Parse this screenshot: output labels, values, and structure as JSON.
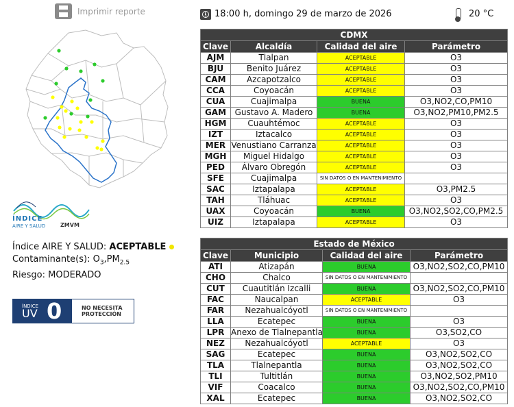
{
  "print": {
    "label": "Imprimir reporte",
    "icon": "printer-icon"
  },
  "header": {
    "datetime": "18:00 h, domingo 29 de marzo de 2026",
    "temperature": "20 °C"
  },
  "logo": {
    "line1": "ÍNDICE",
    "line2": "AIRE Y SALUD",
    "brand": "ZMVM"
  },
  "summary": {
    "index_label": "Índice AIRE Y SALUD: ",
    "index_value": "ACEPTABLE",
    "pollutant_label": "Contaminante(s): ",
    "pollutant_value": "O",
    "pollutant_sub1": "3",
    "pollutant_mid": ",PM",
    "pollutant_sub2": "2.5",
    "risk_label": "Riesgo: ",
    "risk_value": "MODERADO"
  },
  "uv": {
    "label_small": "ÍNDICE",
    "label_big": "UV",
    "value": "0",
    "note_line1": "NO NECESITA",
    "note_line2": "PROTECCIÓN"
  },
  "colors": {
    "aceptable": "#ffff00",
    "buena": "#2ccc2c",
    "header_bg": "#3f3f3f",
    "uv_blue": "#1e3f73"
  },
  "cdmx": {
    "title": "CDMX",
    "columns": [
      "Clave",
      "Alcaldía",
      "Calidad del aire",
      "Parámetro"
    ],
    "rows": [
      {
        "clave": "AJM",
        "name": "Tlalpan",
        "quality": "ACEPTABLE",
        "param": "O3"
      },
      {
        "clave": "BJU",
        "name": "Benito Juárez",
        "quality": "ACEPTABLE",
        "param": "O3"
      },
      {
        "clave": "CAM",
        "name": "Azcapotzalco",
        "quality": "ACEPTABLE",
        "param": "O3"
      },
      {
        "clave": "CCA",
        "name": "Coyoacán",
        "quality": "ACEPTABLE",
        "param": "O3"
      },
      {
        "clave": "CUA",
        "name": "Cuajimalpa",
        "quality": "BUENA",
        "param": "O3,NO2,CO,PM10"
      },
      {
        "clave": "GAM",
        "name": "Gustavo A. Madero",
        "quality": "BUENA",
        "param": "O3,NO2,PM10,PM2.5"
      },
      {
        "clave": "HGM",
        "name": "Cuauhtémoc",
        "quality": "ACEPTABLE",
        "param": "O3"
      },
      {
        "clave": "IZT",
        "name": "Iztacalco",
        "quality": "ACEPTABLE",
        "param": "O3"
      },
      {
        "clave": "MER",
        "name": "Venustiano Carranza",
        "quality": "ACEPTABLE",
        "param": "O3"
      },
      {
        "clave": "MGH",
        "name": "Miguel Hidalgo",
        "quality": "ACEPTABLE",
        "param": "O3"
      },
      {
        "clave": "PED",
        "name": "Álvaro Obregón",
        "quality": "ACEPTABLE",
        "param": "O3"
      },
      {
        "clave": "SFE",
        "name": "Cuajimalpa",
        "quality": "SIN DATOS O EN MANTENIMIENTO",
        "param": ""
      },
      {
        "clave": "SAC",
        "name": "Iztapalapa",
        "quality": "ACEPTABLE",
        "param": "O3,PM2.5"
      },
      {
        "clave": "TAH",
        "name": "Tláhuac",
        "quality": "ACEPTABLE",
        "param": "O3"
      },
      {
        "clave": "UAX",
        "name": "Coyoacán",
        "quality": "BUENA",
        "param": "O3,NO2,SO2,CO,PM2.5"
      },
      {
        "clave": "UIZ",
        "name": "Iztapalapa",
        "quality": "ACEPTABLE",
        "param": "O3"
      }
    ]
  },
  "edomex": {
    "title": "Estado de México",
    "columns": [
      "Clave",
      "Municipio",
      "Calidad del aire",
      "Parámetro"
    ],
    "rows": [
      {
        "clave": "ATI",
        "name": "Atizapán",
        "quality": "BUENA",
        "param": "O3,NO2,SO2,CO,PM10"
      },
      {
        "clave": "CHO",
        "name": "Chalco",
        "quality": "SIN DATOS O EN MANTENIMIENTO",
        "param": ""
      },
      {
        "clave": "CUT",
        "name": "Cuautitlán Izcalli",
        "quality": "BUENA",
        "param": "O3,NO2,SO2,CO,PM10"
      },
      {
        "clave": "FAC",
        "name": "Naucalpan",
        "quality": "ACEPTABLE",
        "param": "O3"
      },
      {
        "clave": "FAR",
        "name": "Nezahualcóyotl",
        "quality": "SIN DATOS O EN MANTENIMIENTO",
        "param": ""
      },
      {
        "clave": "LLA",
        "name": "Ecatepec",
        "quality": "BUENA",
        "param": "O3"
      },
      {
        "clave": "LPR",
        "name": "Anexo de Tlalnepantla",
        "quality": "BUENA",
        "param": "O3,SO2,CO"
      },
      {
        "clave": "NEZ",
        "name": "Nezahualcóyotl",
        "quality": "ACEPTABLE",
        "param": "O3"
      },
      {
        "clave": "SAG",
        "name": "Ecatepec",
        "quality": "BUENA",
        "param": "O3,NO2,SO2,CO"
      },
      {
        "clave": "TLA",
        "name": "Tlalnepantla",
        "quality": "BUENA",
        "param": "O3,NO2,SO2,CO"
      },
      {
        "clave": "TLI",
        "name": "Tultitlán",
        "quality": "BUENA",
        "param": "O3,NO2,SO2,PM10"
      },
      {
        "clave": "VIF",
        "name": "Coacalco",
        "quality": "BUENA",
        "param": "O3,NO2,SO2,CO,PM10"
      },
      {
        "clave": "XAL",
        "name": "Ecatepec",
        "quality": "BUENA",
        "param": "O3,NO2,SO2,CO"
      }
    ]
  }
}
